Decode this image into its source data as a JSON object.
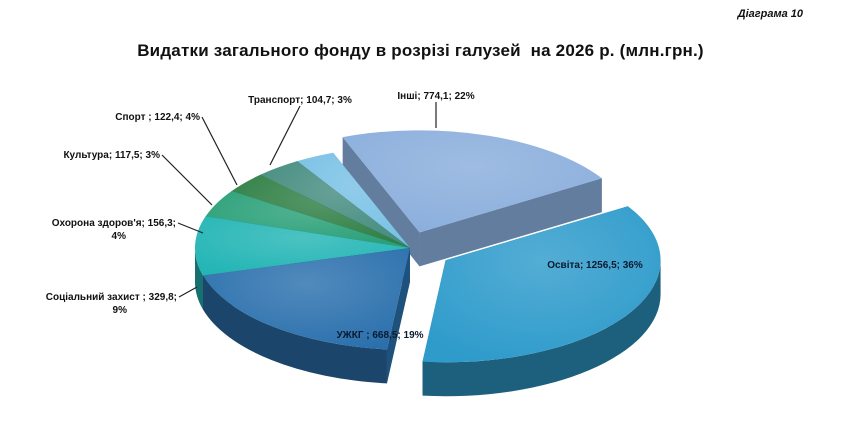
{
  "header": {
    "diagram_number": "Діаграма 10"
  },
  "chart_data": {
    "type": "pie",
    "title": "Видатки загального фонду в розрізі галузей  на 2026 р. (млн.грн.)",
    "slices": [
      {
        "name": "Освіта",
        "value": 1256.5,
        "percent": 36,
        "label_lines": [
          "Освіта; 1256,5; 36%"
        ],
        "color": "#2e9bcb"
      },
      {
        "name": "УЖКГ",
        "value": 668.5,
        "percent": 19,
        "label_lines": [
          "УЖКГ ; 668,5; 19%"
        ],
        "color": "#2b70ad"
      },
      {
        "name": "Соціальний захист",
        "value": 329.8,
        "percent": 9,
        "label_lines": [
          "Соціальний захист ; 329,8;",
          "9%"
        ],
        "color": "#24b5b5"
      },
      {
        "name": "Охорона здоров'я",
        "value": 156.3,
        "percent": 4,
        "label_lines": [
          "Охорона здоров'я; 156,3;",
          "4%"
        ],
        "color": "#2aa078"
      },
      {
        "name": "Культура",
        "value": 117.5,
        "percent": 3,
        "label_lines": [
          "Культура; 117,5; 3%"
        ],
        "color": "#2f7f45"
      },
      {
        "name": "Спорт",
        "value": 122.4,
        "percent": 4,
        "label_lines": [
          "Спорт ; 122,4; 4%"
        ],
        "color": "#458c7f"
      },
      {
        "name": "Транспорт",
        "value": 104.7,
        "percent": 3,
        "label_lines": [
          "Транспорт; 104,7; 3%"
        ],
        "color": "#79c1e5"
      },
      {
        "name": "Інші",
        "value": 774.1,
        "percent": 22,
        "label_lines": [
          "Інші; 774,1; 22%"
        ],
        "color": "#8aaedc"
      }
    ]
  }
}
